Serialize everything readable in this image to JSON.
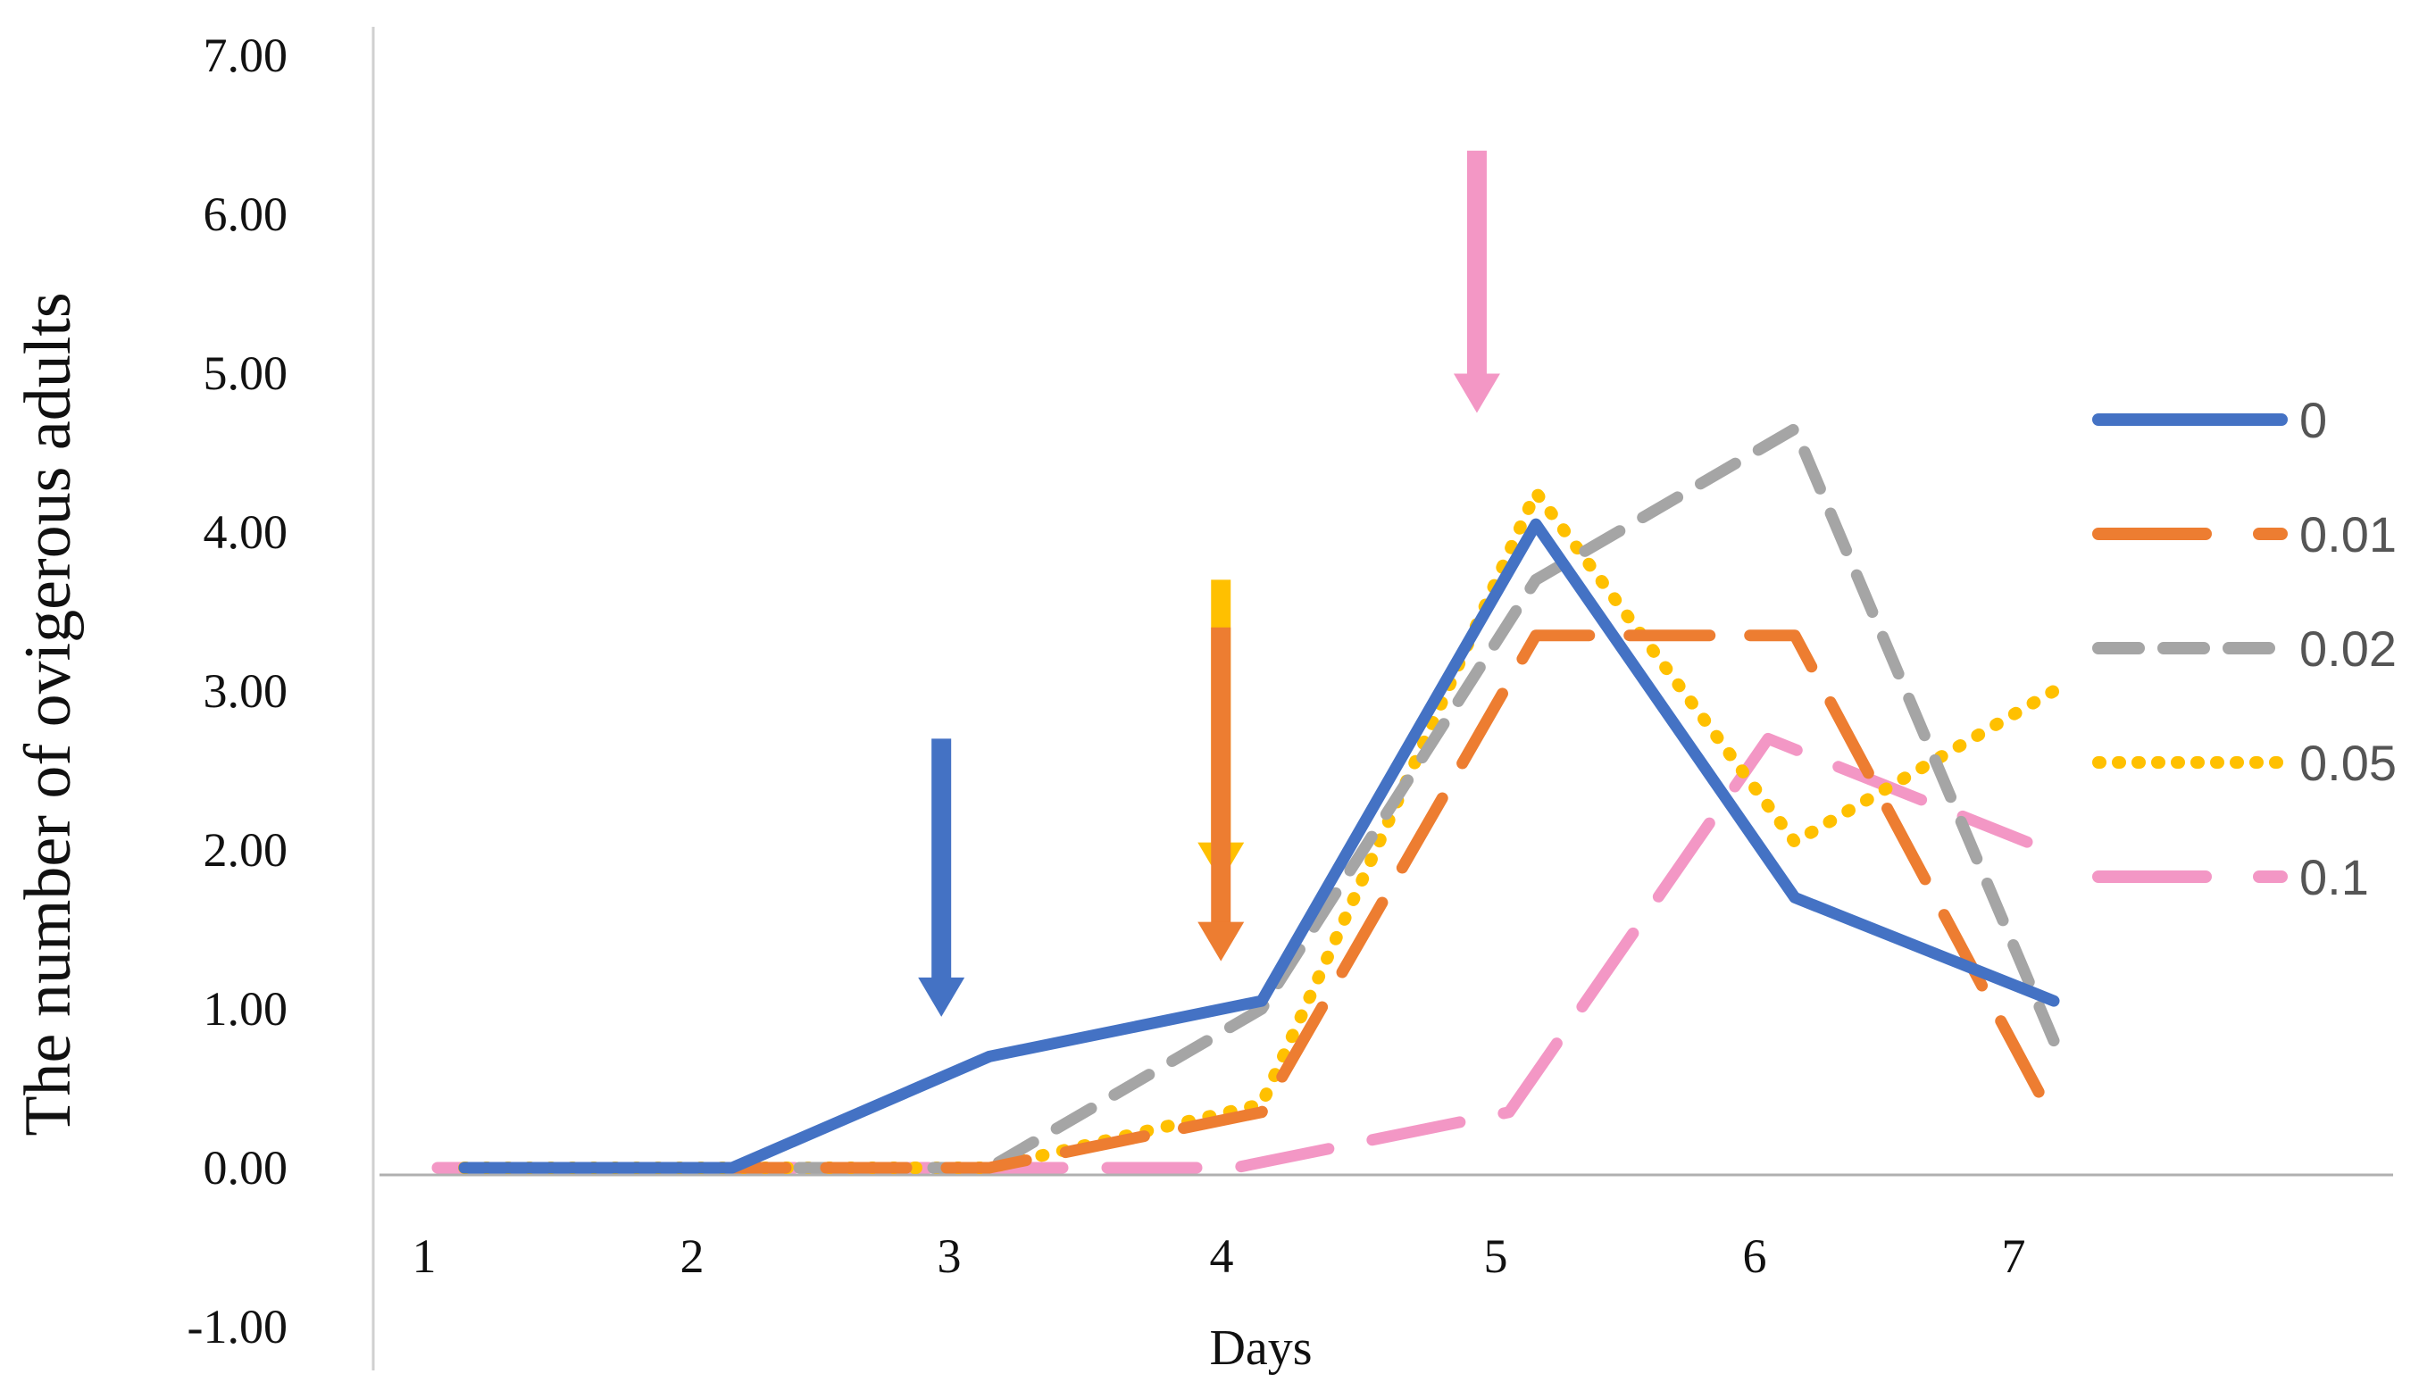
{
  "chart_data": {
    "type": "line",
    "title": "",
    "xlabel": "Days",
    "ylabel": "The number of ovigerous adults",
    "x": [
      1,
      2,
      3,
      4,
      5,
      6,
      7
    ],
    "x_tick_labels": [
      "1",
      "2",
      "3",
      "4",
      "5",
      "6",
      "7"
    ],
    "y_tick_labels": [
      "-1.00",
      "0.00",
      "1.00",
      "2.00",
      "3.00",
      "4.00",
      "5.00",
      "6.00",
      "7.00"
    ],
    "ylim": [
      -1,
      7
    ],
    "legend_position": "right",
    "series": [
      {
        "name": "0",
        "color": "#4472C4",
        "style": "solid",
        "values": [
          0,
          0,
          0.7,
          1.05,
          4.05,
          1.7,
          1.05
        ]
      },
      {
        "name": "0.01",
        "color": "#ED7D31",
        "style": "long-dash",
        "values": [
          0,
          0,
          0,
          0.35,
          3.35,
          3.35,
          0.3
        ]
      },
      {
        "name": "0.02",
        "color": "#A5A5A5",
        "style": "dash",
        "values": [
          0,
          0,
          0,
          1.0,
          3.7,
          4.65,
          0.8
        ]
      },
      {
        "name": "0.05",
        "color": "#FFC000",
        "style": "dot",
        "values": [
          0,
          0,
          0,
          0.4,
          4.25,
          2.05,
          3.0
        ]
      },
      {
        "name": "0.1",
        "color": "#F397C5",
        "style": "long-dash-dot",
        "values": [
          0,
          0,
          0,
          0,
          0.35,
          2.7,
          2.05
        ]
      }
    ],
    "annotations": [
      {
        "type": "arrow",
        "x": 3.85,
        "y_from": 3.7,
        "y_to": 1.8,
        "color": "#FFC000"
      },
      {
        "type": "arrow",
        "x": 3.85,
        "y_from": 3.4,
        "y_to": 1.3,
        "color": "#ED7D31"
      },
      {
        "type": "arrow",
        "x": 2.9,
        "y_from": 2.7,
        "y_to": 0.95,
        "color": "#4472C4"
      },
      {
        "type": "arrow",
        "x": 4.85,
        "y_from": 6.4,
        "y_to": 4.75,
        "color": "#F397C5"
      }
    ]
  }
}
